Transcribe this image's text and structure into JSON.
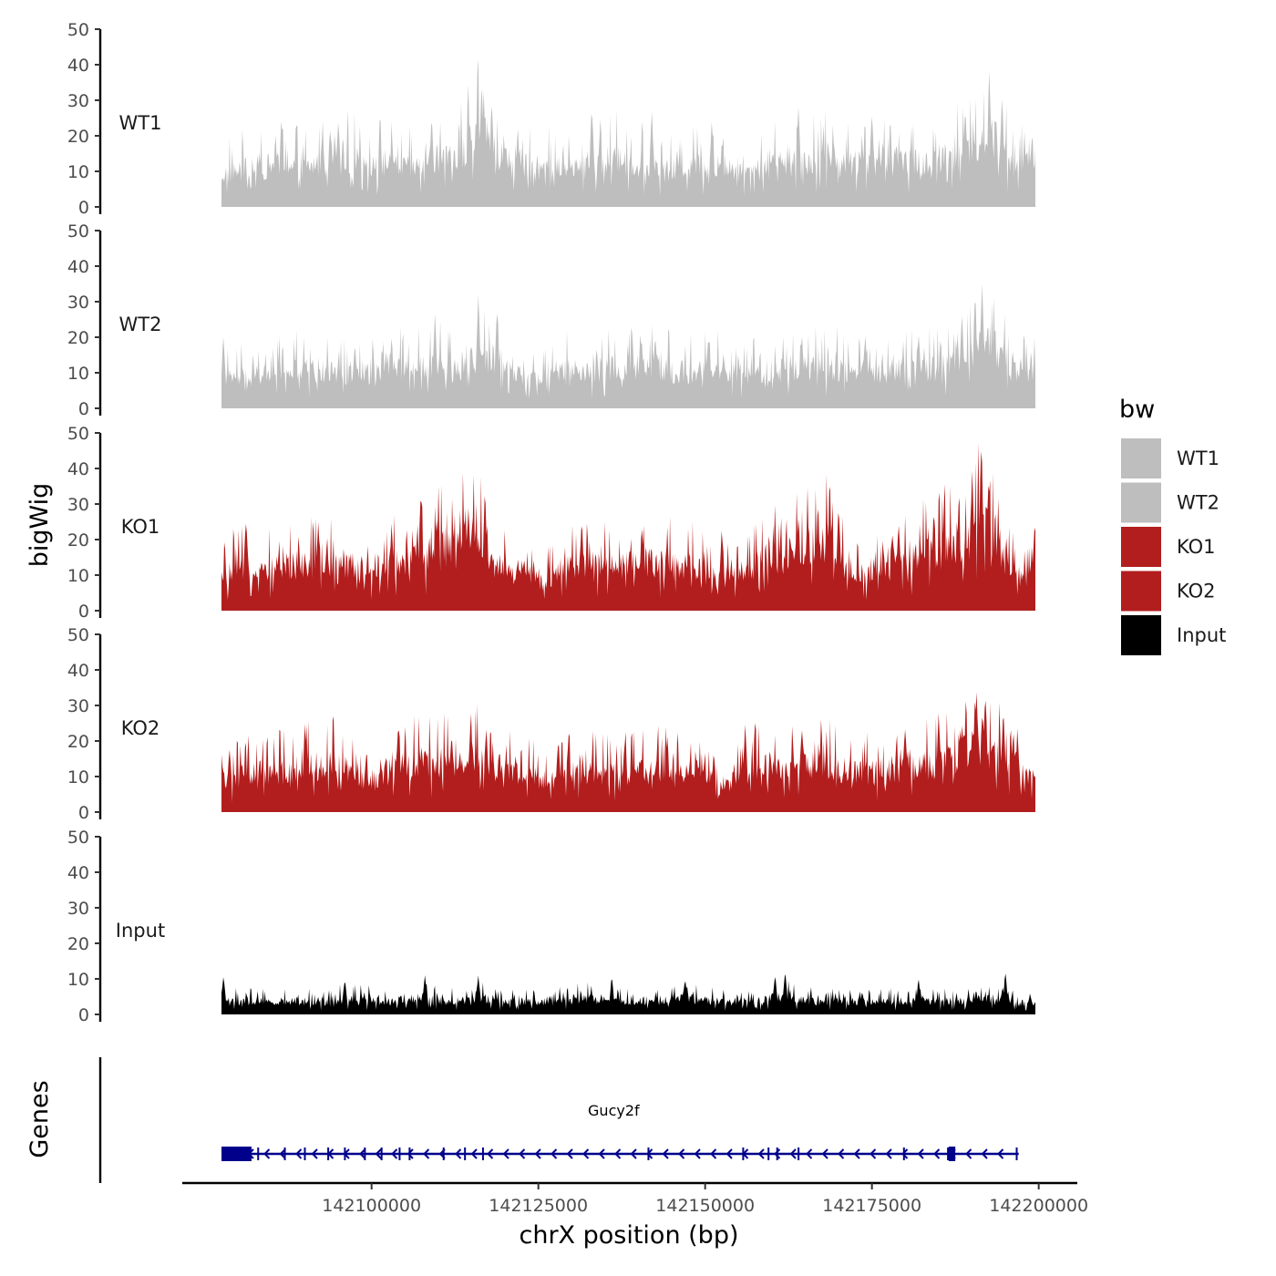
{
  "chart_data": {
    "type": "area",
    "chromosome": "chrX",
    "xlabel": "chrX position (bp)",
    "ylabel": "bigWig",
    "xlim": [
      142071000,
      142206000
    ],
    "data_range": [
      142077500,
      142199500
    ],
    "x_ticks": [
      142100000,
      142125000,
      142150000,
      142175000,
      142200000
    ],
    "x_tick_labels": [
      "142100000",
      "142125000",
      "142150000",
      "142175000",
      "142200000"
    ],
    "ylim": [
      0,
      50
    ],
    "y_ticks": [
      0,
      10,
      20,
      30,
      40,
      50
    ],
    "y_tick_labels": [
      "0",
      "10",
      "20",
      "30",
      "40",
      "50"
    ],
    "tracks": [
      {
        "name": "WT1",
        "label": "WT1",
        "color": "#bebebe",
        "x": [
          142077500,
          142082000,
          142086000,
          142090000,
          142094000,
          142098000,
          142102000,
          142106000,
          142110000,
          142113000,
          142116000,
          142118500,
          142121000,
          142125000,
          142129000,
          142133000,
          142136000,
          142140000,
          142144000,
          142148000,
          142152000,
          142156000,
          142160000,
          142164000,
          142168000,
          142172000,
          142176000,
          142180000,
          142184000,
          142188000,
          142191000,
          142193500,
          142196000,
          142199500
        ],
        "values": [
          10,
          12,
          13,
          12,
          15,
          14,
          13,
          12,
          14,
          15,
          24,
          18,
          13,
          12,
          13,
          12,
          15,
          13,
          11,
          13,
          12,
          11,
          13,
          14,
          16,
          14,
          13,
          15,
          13,
          16,
          20,
          22,
          13,
          14
        ],
        "peaks": [
          [
            142086500,
            26
          ],
          [
            142095000,
            24
          ],
          [
            142109000,
            26
          ],
          [
            142116500,
            35
          ],
          [
            142118000,
            30
          ],
          [
            142133000,
            29
          ],
          [
            142142000,
            28
          ],
          [
            142151000,
            25
          ],
          [
            142164000,
            29
          ],
          [
            142175000,
            27
          ],
          [
            142189000,
            28
          ],
          [
            142192600,
            39
          ],
          [
            142194500,
            31
          ],
          [
            142199000,
            20
          ]
        ]
      },
      {
        "name": "WT2",
        "label": "WT2",
        "color": "#bebebe",
        "x": [
          142077500,
          142082000,
          142086000,
          142090000,
          142094000,
          142098000,
          142102000,
          142106000,
          142110000,
          142113000,
          142116000,
          142118500,
          142121000,
          142125000,
          142129000,
          142133000,
          142136000,
          142140000,
          142144000,
          142148000,
          142152000,
          142156000,
          142160000,
          142164000,
          142168000,
          142172000,
          142176000,
          142180000,
          142184000,
          142188000,
          142191000,
          142193500,
          142196000,
          142199500
        ],
        "values": [
          9,
          10,
          11,
          12,
          11,
          10,
          13,
          12,
          13,
          12,
          16,
          14,
          11,
          10,
          12,
          11,
          12,
          13,
          12,
          11,
          12,
          10,
          12,
          11,
          13,
          12,
          11,
          13,
          12,
          15,
          20,
          19,
          12,
          12
        ],
        "peaks": [
          [
            142077800,
            21
          ],
          [
            142097500,
            19
          ],
          [
            142103000,
            20
          ],
          [
            142109500,
            27
          ],
          [
            142116000,
            32
          ],
          [
            142118800,
            28
          ],
          [
            142142500,
            21
          ],
          [
            142150500,
            21
          ],
          [
            142164500,
            21
          ],
          [
            142174000,
            21
          ],
          [
            142182000,
            21
          ],
          [
            142191500,
            35
          ],
          [
            142188500,
            27
          ]
        ]
      },
      {
        "name": "KO1",
        "label": "KO1",
        "color": "#b21e1e",
        "x": [
          142077500,
          142080000,
          142084000,
          142088000,
          142092000,
          142096000,
          142100000,
          142104000,
          142108000,
          142111000,
          142113500,
          142115500,
          142117500,
          142120000,
          142123000,
          142125500,
          142129000,
          142133000,
          142137000,
          142141000,
          142145000,
          142149000,
          142152000,
          142154500,
          142158000,
          142162000,
          142165000,
          142168000,
          142171000,
          142174000,
          142178000,
          142182000,
          142186000,
          142189000,
          142191000,
          142193000,
          142195500,
          142198000,
          142199500
        ],
        "values": [
          10,
          13,
          12,
          14,
          15,
          15,
          10,
          15,
          18,
          20,
          25,
          27,
          14,
          12,
          12,
          9,
          13,
          13,
          14,
          15,
          14,
          14,
          9,
          11,
          15,
          17,
          19,
          22,
          13,
          11,
          16,
          17,
          19,
          21,
          30,
          24,
          14,
          10,
          12
        ],
        "peaks": [
          [
            142081200,
            26
          ],
          [
            142092000,
            25
          ],
          [
            142103000,
            25
          ],
          [
            142110000,
            26
          ],
          [
            142114500,
            29
          ],
          [
            142117000,
            35
          ],
          [
            142131500,
            26
          ],
          [
            142140500,
            24
          ],
          [
            142152500,
            24
          ],
          [
            142164000,
            26
          ],
          [
            142170000,
            30
          ],
          [
            142179000,
            25
          ],
          [
            142188000,
            27
          ],
          [
            142190000,
            40
          ],
          [
            142191400,
            48
          ],
          [
            142192500,
            38
          ],
          [
            142199400,
            25
          ]
        ]
      },
      {
        "name": "KO2",
        "label": "KO2",
        "color": "#b21e1e",
        "x": [
          142077500,
          142081000,
          142085000,
          142089000,
          142093000,
          142097000,
          142100000,
          142104000,
          142108000,
          142112000,
          142115000,
          142118000,
          142121000,
          142124000,
          142126000,
          142130000,
          142134000,
          142138000,
          142142000,
          142146000,
          142150000,
          142152500,
          142155000,
          142158000,
          142162000,
          142166000,
          142170000,
          142174000,
          142178000,
          142182000,
          142186000,
          142189000,
          142191500,
          142193500,
          142196000,
          142198500,
          142199500
        ],
        "values": [
          10,
          12,
          12,
          13,
          15,
          13,
          9,
          14,
          15,
          16,
          17,
          14,
          12,
          11,
          9,
          13,
          12,
          12,
          13,
          14,
          12,
          7,
          11,
          14,
          15,
          15,
          13,
          12,
          13,
          14,
          15,
          19,
          20,
          17,
          15,
          11,
          12
        ],
        "peaks": [
          [
            142078700,
            18
          ],
          [
            142090000,
            24
          ],
          [
            142104000,
            25
          ],
          [
            142112000,
            22
          ],
          [
            142114800,
            24
          ],
          [
            142117200,
            24
          ],
          [
            142128000,
            21
          ],
          [
            142138000,
            21
          ],
          [
            142144300,
            22
          ],
          [
            142156000,
            25
          ],
          [
            142164500,
            24
          ],
          [
            142180000,
            24
          ],
          [
            142185000,
            28
          ],
          [
            142192000,
            34
          ],
          [
            142194700,
            29
          ],
          [
            142196800,
            24
          ]
        ]
      },
      {
        "name": "Input",
        "label": "Input",
        "color": "#000000",
        "x": [
          142077500,
          142082000,
          142087000,
          142092000,
          142097000,
          142102000,
          142107000,
          142112000,
          142117000,
          142122000,
          142127000,
          142132000,
          142137000,
          142142000,
          142147000,
          142152000,
          142157000,
          142160000,
          142163000,
          142168000,
          142173000,
          142178000,
          142183000,
          142188000,
          142193000,
          142196000,
          142199500
        ],
        "values": [
          4,
          4,
          4,
          4,
          5,
          4,
          5,
          4,
          5,
          4,
          4,
          5,
          4,
          4,
          5,
          4,
          4,
          5,
          5,
          4,
          4,
          4,
          4,
          4,
          5,
          4,
          3
        ],
        "peaks": [
          [
            142077800,
            11
          ],
          [
            142096000,
            10
          ],
          [
            142108000,
            11
          ],
          [
            142116000,
            11
          ],
          [
            142136000,
            11
          ],
          [
            142147000,
            10
          ],
          [
            142160500,
            11
          ],
          [
            142162000,
            12.5
          ],
          [
            142182000,
            10
          ],
          [
            142195000,
            12
          ],
          [
            142198700,
            6
          ]
        ]
      }
    ],
    "legend": {
      "title": "bw",
      "position": "right",
      "entries": [
        {
          "label": "WT1",
          "color": "#bebebe"
        },
        {
          "label": "WT2",
          "color": "#bebebe"
        },
        {
          "label": "KO1",
          "color": "#b21e1e"
        },
        {
          "label": "KO2",
          "color": "#b21e1e"
        },
        {
          "label": "Input",
          "color": "#000000"
        }
      ]
    },
    "genes": {
      "panel_label": "Genes",
      "color": "#00008b",
      "items": [
        {
          "name": "Gucy2f",
          "strand": "-",
          "start": 142077500,
          "end": 142197000,
          "exons": [
            [
              142077500,
              142082000
            ],
            [
              142186500,
              142187500
            ]
          ],
          "exon_marks": [
            142083000,
            142087000,
            142090000,
            142093500,
            142096000,
            142099000,
            142101500,
            142104200,
            142105700,
            142110800,
            142114000,
            142116700,
            142141500,
            142155700,
            142159500,
            142160800,
            142164000,
            142179800,
            142186400,
            142187200,
            142196700
          ]
        }
      ]
    }
  }
}
